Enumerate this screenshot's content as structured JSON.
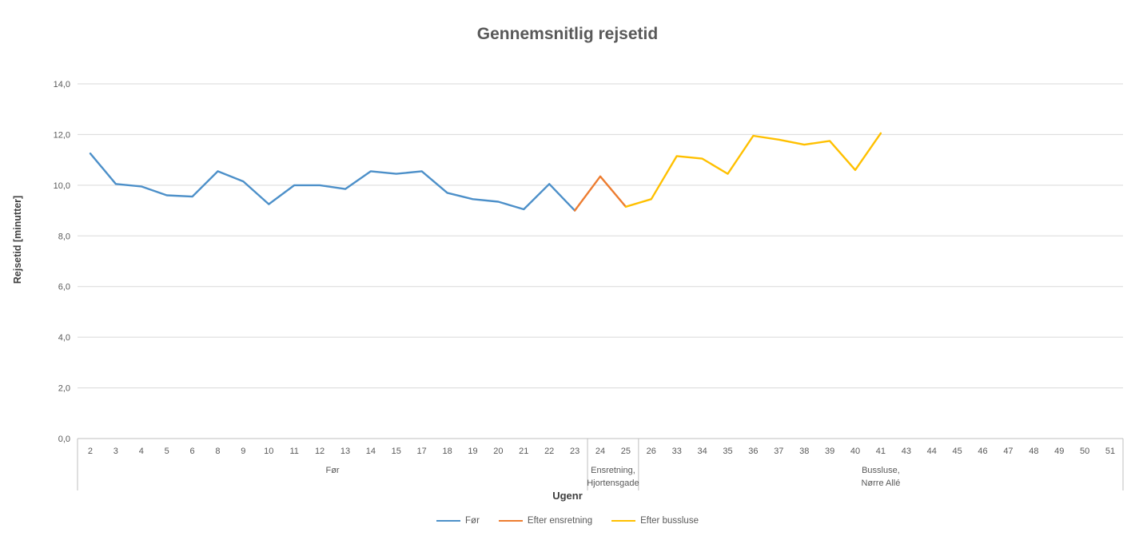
{
  "chart": {
    "title": "Gennemsnitlig rejsetid",
    "y_axis_title": "Rejsetid [minutter]",
    "x_axis_title": "Ugenr",
    "legend": [
      {
        "label": "Før",
        "color": "#4D90C9"
      },
      {
        "label": "Efter ensretning",
        "color": "#ED7D31"
      },
      {
        "label": "Efter bussluse",
        "color": "#FFC000"
      }
    ]
  },
  "chart_data": {
    "type": "line",
    "title": "Gennemsnitlig rejsetid",
    "xlabel": "Ugenr",
    "ylabel": "Rejsetid [minutter]",
    "ylim": [
      0,
      14
    ],
    "y_tick_step": 2,
    "y_tick_labels": [
      "0,0",
      "2,0",
      "4,0",
      "6,0",
      "8,0",
      "10,0",
      "12,0",
      "14,0"
    ],
    "grid": true,
    "legend_position": "bottom",
    "categories": [
      "2",
      "3",
      "4",
      "5",
      "6",
      "8",
      "9",
      "10",
      "11",
      "12",
      "13",
      "14",
      "15",
      "17",
      "18",
      "19",
      "20",
      "21",
      "22",
      "23",
      "24",
      "25",
      "26",
      "33",
      "34",
      "35",
      "36",
      "37",
      "38",
      "39",
      "40",
      "41",
      "43",
      "44",
      "45",
      "46",
      "47",
      "48",
      "49",
      "50",
      "51"
    ],
    "x_groups": [
      {
        "label_lines": [
          "Før"
        ],
        "start_index": 0,
        "end_index": 19
      },
      {
        "label_lines": [
          "Ensretning,",
          "Hjortensgade"
        ],
        "start_index": 20,
        "end_index": 21
      },
      {
        "label_lines": [
          "Bussluse,",
          "Nørre Allé"
        ],
        "start_index": 22,
        "end_index": 40
      }
    ],
    "series": [
      {
        "name": "Før",
        "color": "#4D90C9",
        "values": [
          11.25,
          10.05,
          9.95,
          9.6,
          9.55,
          10.55,
          10.15,
          9.25,
          10.0,
          10.0,
          9.85,
          10.55,
          10.45,
          10.55,
          9.7,
          9.45,
          9.35,
          9.05,
          10.05,
          9.0,
          null,
          null,
          null,
          null,
          null,
          null,
          null,
          null,
          null,
          null,
          null,
          null,
          null,
          null,
          null,
          null,
          null,
          null,
          null,
          null,
          null
        ]
      },
      {
        "name": "Efter ensretning",
        "color": "#ED7D31",
        "values": [
          null,
          null,
          null,
          null,
          null,
          null,
          null,
          null,
          null,
          null,
          null,
          null,
          null,
          null,
          null,
          null,
          null,
          null,
          null,
          9.0,
          10.35,
          9.15,
          null,
          null,
          null,
          null,
          null,
          null,
          null,
          null,
          null,
          null,
          null,
          null,
          null,
          null,
          null,
          null,
          null,
          null,
          null
        ]
      },
      {
        "name": "Efter bussluse",
        "color": "#FFC000",
        "values": [
          null,
          null,
          null,
          null,
          null,
          null,
          null,
          null,
          null,
          null,
          null,
          null,
          null,
          null,
          null,
          null,
          null,
          null,
          null,
          null,
          null,
          9.15,
          9.45,
          11.15,
          11.05,
          10.45,
          11.95,
          11.8,
          11.6,
          11.75,
          10.6,
          12.05,
          null,
          null,
          null,
          null,
          null,
          null,
          null,
          null,
          null
        ]
      }
    ]
  }
}
